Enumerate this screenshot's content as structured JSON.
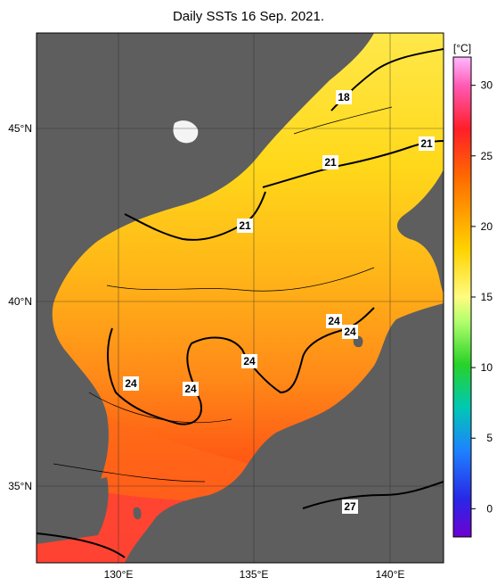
{
  "title": "Daily SSTs 16 Sep. 2021.",
  "map": {
    "lat_labels": [
      "45°N",
      "40°N",
      "35°N"
    ],
    "lon_labels": [
      "130°E",
      "135°E",
      "140°E"
    ],
    "contour_labels": [
      "18",
      "21",
      "21",
      "21",
      "24",
      "24",
      "24",
      "24",
      "24",
      "27"
    ],
    "colors": {
      "land": "#5a5a5a",
      "cold": "#ffe000",
      "mid": "#ffb020",
      "warm": "#ff6010",
      "hot": "#ff2040"
    }
  },
  "colorbar": {
    "unit": "[°C]",
    "ticks": [
      "30",
      "25",
      "20",
      "15",
      "10",
      "5",
      "0"
    ],
    "tick_values": [
      30,
      25,
      20,
      15,
      10,
      5,
      0
    ],
    "range": [
      -2,
      32
    ]
  }
}
